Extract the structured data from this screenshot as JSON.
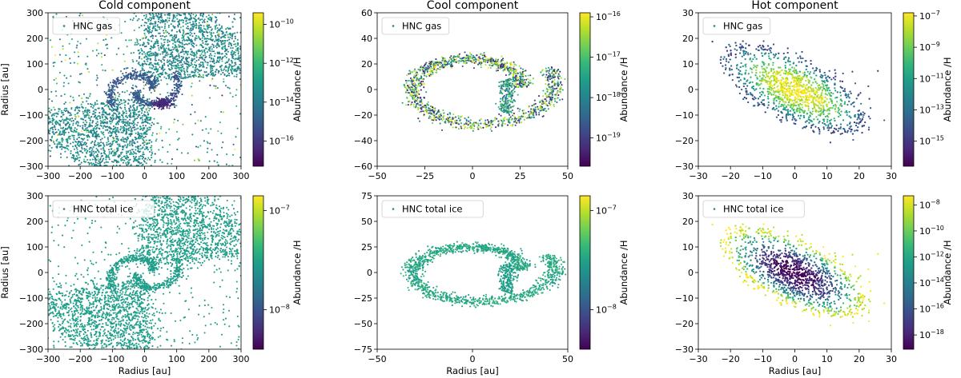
{
  "figure": {
    "colormap": [
      "#440154",
      "#482878",
      "#3e4989",
      "#31688e",
      "#26828e",
      "#1f9e89",
      "#35b779",
      "#6ece58",
      "#b5de2b",
      "#fde725"
    ],
    "colorbar_label": "Abundance /H"
  },
  "chart_data": [
    {
      "type": "scatter",
      "panel": "cold-gas",
      "title": "Cold component",
      "legend": "HNC gas",
      "xlabel": "",
      "ylabel": "Radius [au]",
      "xlim": [
        -300,
        300
      ],
      "ylim": [
        -300,
        300
      ],
      "xticks": [
        "−300",
        "−200",
        "−100",
        "0",
        "100",
        "200",
        "300"
      ],
      "yticks": [
        "300",
        "200",
        "100",
        "0",
        "−100",
        "−200",
        "−300"
      ],
      "colorbar": {
        "log": true,
        "range_log10": [
          -17.3,
          -9.4
        ],
        "ticks": [
          {
            "exp": "−10",
            "v": -10
          },
          {
            "exp": "−12",
            "v": -12
          },
          {
            "exp": "−14",
            "v": -14
          },
          {
            "exp": "−16",
            "v": -16
          }
        ]
      },
      "shape": "spiral",
      "fill": "green-scatter"
    },
    {
      "type": "scatter",
      "panel": "cool-gas",
      "title": "Cool component",
      "legend": "HNC gas",
      "xlabel": "",
      "ylabel": "",
      "xlim": [
        -70,
        70
      ],
      "ylim": [
        -67,
        67
      ],
      "xticks": [
        "−50",
        "−25",
        "0",
        "25",
        "50"
      ],
      "yticks": [
        "60",
        "40",
        "20",
        "0",
        "−20",
        "−40",
        "−60"
      ],
      "colorbar": {
        "log": true,
        "range_log10": [
          -19.7,
          -15.9
        ],
        "ticks": [
          {
            "exp": "−16",
            "v": -16
          },
          {
            "exp": "−17",
            "v": -17
          },
          {
            "exp": "−18",
            "v": -18
          },
          {
            "exp": "−19",
            "v": -19
          }
        ]
      },
      "shape": "ring",
      "fill": "mixed"
    },
    {
      "type": "scatter",
      "panel": "hot-gas",
      "title": "Hot component",
      "legend": "HNC gas",
      "xlabel": "",
      "ylabel": "",
      "xlim": [
        -30,
        30
      ],
      "ylim": [
        -30,
        30
      ],
      "xticks": [
        "−30",
        "−20",
        "−10",
        "0",
        "10",
        "20",
        "30"
      ],
      "yticks": [
        "30",
        "20",
        "10",
        "0",
        "−10",
        "−20",
        "−30"
      ],
      "colorbar": {
        "log": true,
        "range_log10": [
          -16.6,
          -6.8
        ],
        "ticks": [
          {
            "exp": "−7",
            "v": -7
          },
          {
            "exp": "−9",
            "v": -9
          },
          {
            "exp": "−11",
            "v": -11
          },
          {
            "exp": "−13",
            "v": -13
          },
          {
            "exp": "−15",
            "v": -15
          }
        ]
      },
      "shape": "ellipse",
      "fill": "hot-core-bright"
    },
    {
      "type": "scatter",
      "panel": "cold-ice",
      "title": "",
      "legend": "HNC total ice",
      "xlabel": "Radius [au]",
      "ylabel": "Radius [au]",
      "xlim": [
        -300,
        300
      ],
      "ylim": [
        -300,
        300
      ],
      "xticks": [
        "−300",
        "−200",
        "−100",
        "0",
        "100",
        "200",
        "300"
      ],
      "yticks": [
        "300",
        "200",
        "100",
        "0",
        "−100",
        "−200",
        "−300"
      ],
      "colorbar": {
        "log": true,
        "range_log10": [
          -8.4,
          -6.85
        ],
        "ticks": [
          {
            "exp": "−7",
            "v": -7
          },
          {
            "exp": "−8",
            "v": -8
          }
        ]
      },
      "shape": "spiral",
      "fill": "uniform"
    },
    {
      "type": "scatter",
      "panel": "cool-ice",
      "title": "",
      "legend": "HNC total ice",
      "xlabel": "Radius [au]",
      "ylabel": "",
      "xlim": [
        -70,
        70
      ],
      "ylim": [
        -80,
        80
      ],
      "xticks": [
        "−50",
        "0",
        "50"
      ],
      "yticks": [
        "75",
        "50",
        "25",
        "0",
        "−25",
        "−50",
        "−75"
      ],
      "colorbar": {
        "log": true,
        "range_log10": [
          -8.4,
          -6.85
        ],
        "ticks": [
          {
            "exp": "−7",
            "v": -7
          },
          {
            "exp": "−8",
            "v": -8
          }
        ]
      },
      "shape": "ring",
      "fill": "uniform"
    },
    {
      "type": "scatter",
      "panel": "hot-ice",
      "title": "",
      "legend": "HNC total ice",
      "xlabel": "Radius [au]",
      "ylabel": "",
      "xlim": [
        -30,
        30
      ],
      "ylim": [
        -30,
        30
      ],
      "xticks": [
        "−30",
        "−20",
        "−10",
        "0",
        "10",
        "20",
        "30"
      ],
      "yticks": [
        "30",
        "20",
        "10",
        "0",
        "−10",
        "−20",
        "−30"
      ],
      "colorbar": {
        "log": true,
        "range_log10": [
          -19.1,
          -7.3
        ],
        "ticks": [
          {
            "exp": "−8",
            "v": -8
          },
          {
            "exp": "−10",
            "v": -10
          },
          {
            "exp": "−12",
            "v": -12
          },
          {
            "exp": "−14",
            "v": -14
          },
          {
            "exp": "−16",
            "v": -16
          },
          {
            "exp": "−18",
            "v": -18
          }
        ]
      },
      "shape": "ellipse",
      "fill": "hot-core-dark"
    }
  ]
}
